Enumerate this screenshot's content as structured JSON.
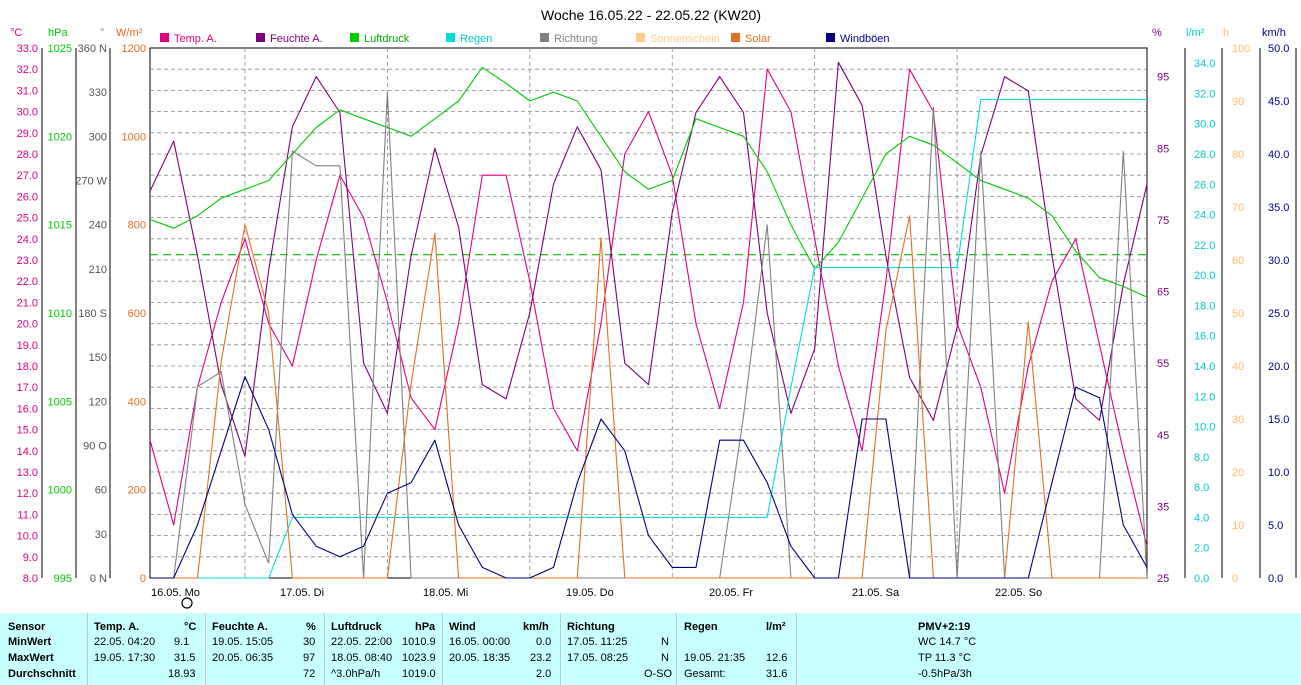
{
  "title": "Woche 16.05.22 - 22.05.22 (KW20)",
  "legend": [
    {
      "name": "Temp. A.",
      "color": "#e0007f"
    },
    {
      "name": "Feuchte A.",
      "color": "#7a007a"
    },
    {
      "name": "Luftdruck",
      "color": "#00cc00"
    },
    {
      "name": "Regen",
      "color": "#00dddd"
    },
    {
      "name": "Richtung",
      "color": "#808080"
    },
    {
      "name": "Sonnenschein",
      "color": "#ffcc88"
    },
    {
      "name": "Solar",
      "color": "#e07020"
    },
    {
      "name": "Windböen",
      "color": "#000080"
    }
  ],
  "axes": {
    "temp": {
      "unit": "°C",
      "color": "#e0007f",
      "ticks": [
        "33.0",
        "32.0",
        "31.0",
        "30.0",
        "29.0",
        "28.0",
        "27.0",
        "26.0",
        "25.0",
        "24.0",
        "23.0",
        "22.0",
        "21.0",
        "20.0",
        "19.0",
        "18.0",
        "17.0",
        "16.0",
        "15.0",
        "14.0",
        "13.0",
        "12.0",
        "11.0",
        "10.0",
        "9.0",
        "8.0"
      ]
    },
    "press": {
      "unit": "hPa",
      "color": "#00cc00",
      "ticks": [
        "1025",
        "1020",
        "1015",
        "1010",
        "1005",
        "1000",
        "995"
      ]
    },
    "dir": {
      "unit": "°",
      "color": "#808080",
      "ticks": [
        "360 N",
        "330",
        "300",
        "270 W",
        "240",
        "210",
        "180 S",
        "150",
        "120",
        "90 O",
        "60",
        "30",
        "0 N"
      ]
    },
    "solar": {
      "unit": "W/m²",
      "color": "#e07020",
      "ticks": [
        "1200",
        "1000",
        "800",
        "600",
        "400",
        "200",
        "0"
      ]
    },
    "hum": {
      "unit": "%",
      "color": "#7a007a",
      "ticks": [
        "95",
        "85",
        "75",
        "65",
        "55",
        "45",
        "35",
        "25"
      ]
    },
    "rain": {
      "unit": "l/m²",
      "color": "#00cccc",
      "ticks": [
        "34.0",
        "32.0",
        "30.0",
        "28.0",
        "26.0",
        "24.0",
        "22.0",
        "20.0",
        "18.0",
        "16.0",
        "14.0",
        "12.0",
        "10.0",
        "8.0",
        "6.0",
        "4.0",
        "2.0",
        "0.0"
      ]
    },
    "sun": {
      "unit": "h",
      "color": "#ffbb66",
      "ticks": [
        "100",
        "90",
        "80",
        "70",
        "60",
        "50",
        "40",
        "30",
        "20",
        "10",
        "0"
      ]
    },
    "wind": {
      "unit": "km/h",
      "color": "#000080",
      "ticks": [
        "50.0",
        "45.0",
        "40.0",
        "35.0",
        "30.0",
        "25.0",
        "20.0",
        "15.0",
        "10.0",
        "5.0",
        "0.0"
      ]
    }
  },
  "days": [
    "16.05. Mo",
    "17.05. Di",
    "18.05. Mi",
    "19.05. Do",
    "20.05. Fr",
    "21.05. Sa",
    "22.05. So"
  ],
  "chart_data": {
    "type": "line",
    "title": "Woche 16.05.22 - 22.05.22 (KW20)",
    "x": [
      0,
      4,
      8,
      12,
      16,
      20,
      24,
      28,
      32,
      36,
      40,
      44,
      48,
      52,
      56,
      60,
      64,
      68,
      72,
      76,
      80,
      84,
      88,
      92,
      96,
      100,
      104,
      108,
      112,
      116,
      120,
      124,
      128,
      132,
      136,
      140,
      144,
      148,
      152,
      156,
      160,
      164,
      168
    ],
    "x_unit": "hours since 16.05. 00:00",
    "series": [
      {
        "name": "Temp. A.",
        "axis": "temp",
        "values": [
          14.5,
          10.5,
          17,
          21,
          24,
          20,
          18,
          23,
          27,
          25,
          21,
          16.5,
          15,
          20,
          27,
          27,
          22,
          16,
          14,
          20,
          28,
          30,
          27,
          20,
          16,
          21,
          32,
          30,
          24,
          18,
          14,
          22,
          32,
          30,
          20,
          17,
          12,
          18,
          22,
          24,
          19,
          14,
          9.5
        ]
      },
      {
        "name": "Feuchte A.",
        "axis": "hum",
        "values": [
          79,
          86,
          70,
          52,
          42,
          68,
          88,
          95,
          90,
          55,
          48,
          70,
          85,
          74,
          52,
          50,
          62,
          80,
          88,
          82,
          55,
          52,
          76,
          90,
          95,
          90,
          62,
          48,
          57,
          97,
          91,
          70,
          53,
          47,
          60,
          84,
          95,
          93,
          70,
          50,
          47,
          66,
          80
        ]
      },
      {
        "name": "Luftdruck",
        "axis": "press",
        "values": [
          1015.3,
          1014.8,
          1015.5,
          1016.5,
          1017,
          1017.5,
          1019,
          1020.5,
          1021.5,
          1021,
          1020.5,
          1020,
          1021,
          1022,
          1023.9,
          1023,
          1022,
          1022.5,
          1022,
          1020,
          1018,
          1017,
          1017.5,
          1021,
          1020.5,
          1020,
          1018,
          1015,
          1012.5,
          1014,
          1016.5,
          1019,
          1020,
          1019.5,
          1018.5,
          1017.5,
          1017,
          1016.5,
          1015.5,
          1013.5,
          1012,
          1011.5,
          1010.9
        ]
      },
      {
        "name": "Regen",
        "axis": "rain",
        "values": [
          0,
          0,
          0,
          0,
          0,
          0,
          4,
          4,
          4,
          4,
          4,
          4,
          4,
          4,
          4,
          4,
          4,
          4,
          4,
          4,
          4,
          4,
          4,
          4,
          4,
          4,
          4,
          12.6,
          20.5,
          20.5,
          20.5,
          20.5,
          20.5,
          20.5,
          20.5,
          31.6,
          31.6,
          31.6,
          31.6,
          31.6,
          31.6,
          31.6,
          31.6
        ]
      },
      {
        "name": "Richtung",
        "axis": "dir",
        "values": [
          0,
          0,
          130,
          140,
          50,
          10,
          290,
          280,
          280,
          0,
          330,
          0,
          0,
          0,
          0,
          0,
          0,
          0,
          0,
          0,
          0,
          0,
          0,
          0,
          0,
          110,
          240,
          0,
          0,
          0,
          0,
          0,
          0,
          320,
          0,
          290,
          0,
          0,
          0,
          0,
          0,
          290,
          0
        ]
      },
      {
        "name": "Solar",
        "axis": "solar",
        "values": [
          0,
          0,
          0,
          490,
          800,
          600,
          0,
          0,
          0,
          0,
          0,
          440,
          780,
          0,
          0,
          0,
          0,
          0,
          0,
          770,
          0,
          0,
          0,
          0,
          0,
          0,
          0,
          0,
          0,
          0,
          0,
          560,
          820,
          0,
          0,
          0,
          0,
          580,
          0,
          0,
          0,
          0,
          0
        ]
      },
      {
        "name": "Windböen",
        "axis": "wind",
        "values": [
          0,
          0,
          5,
          12,
          19,
          14,
          6,
          3,
          2,
          3,
          8,
          9,
          13,
          5,
          1,
          0,
          0,
          1,
          9,
          15,
          12,
          4,
          1,
          1,
          13,
          13,
          9,
          3,
          0,
          0,
          15,
          15,
          0,
          0,
          0,
          0,
          0,
          0,
          9,
          18,
          17,
          5,
          1
        ]
      }
    ],
    "refline": {
      "axis": "press",
      "value": 1013.3
    }
  },
  "table": {
    "headers": {
      "sensor": "Sensor",
      "temp": "Temp. A.",
      "temp_unit": "°C",
      "hum": "Feuchte A.",
      "hum_unit": "%",
      "press": "Luftdruck",
      "press_unit": "hPa",
      "wind": "Wind",
      "wind_unit": "km/h",
      "dir": "Richtung",
      "rain": "Regen",
      "rain_unit": "l/m²",
      "extra": "PMV+2:19"
    },
    "rows": [
      {
        "label": "MinWert",
        "temp_t": "22.05.  04:20",
        "temp_v": "9.1",
        "hum_t": "19.05.  15:05",
        "hum_v": "30",
        "press_t": "22.05.  22:00",
        "press_v": "1010.9",
        "wind_t": "16.05.  00:00",
        "wind_v": "0.0",
        "dir_t": "17.05.  11:25",
        "dir_v": "N",
        "rain_t": "",
        "rain_v": "",
        "extra": "WC 14.7 °C"
      },
      {
        "label": "MaxWert",
        "temp_t": "19.05.  17:30",
        "temp_v": "31.5",
        "hum_t": "20.05.  06:35",
        "hum_v": "97",
        "press_t": "18.05.  08:40",
        "press_v": "1023.9",
        "wind_t": "20.05.  18:35",
        "wind_v": "23.2",
        "dir_t": "17.05.  08:25",
        "dir_v": "N",
        "rain_t": "19.05.  21:35",
        "rain_v": "12.6",
        "extra": "TP 11.3 °C"
      },
      {
        "label": "Durchschnitt",
        "temp_t": "",
        "temp_v": "18.93",
        "hum_t": "",
        "hum_v": "72",
        "press_t": "^3.0hPa/h",
        "press_v": "1019.0",
        "wind_t": "",
        "wind_v": "2.0",
        "dir_t": "",
        "dir_v": "O-SO",
        "rain_t": "Gesamt:",
        "rain_v": "31.6",
        "extra": "-0.5hPa/3h"
      }
    ]
  }
}
